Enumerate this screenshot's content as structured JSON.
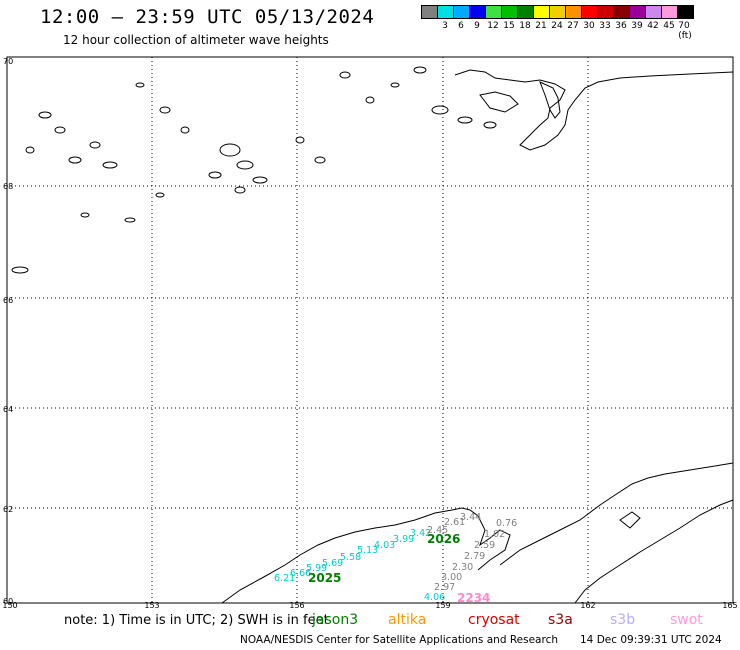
{
  "header": {
    "title": "12:00 – 23:59 UTC 05/13/2024",
    "subtitle": "12 hour collection of altimeter wave heights"
  },
  "legend": {
    "colors": [
      "#808080",
      "#00e0e0",
      "#00aaff",
      "#0000ee",
      "#40e040",
      "#00c000",
      "#008000",
      "#ffff00",
      "#f0d000",
      "#ff9000",
      "#ff0000",
      "#cc0000",
      "#880000",
      "#990099",
      "#cc88ee",
      "#ff99dd",
      "#000000"
    ],
    "labels": [
      "3",
      "6",
      "9",
      "12",
      "15",
      "18",
      "21",
      "24",
      "27",
      "30",
      "33",
      "36",
      "39",
      "42",
      "45",
      "70 (ft)"
    ]
  },
  "axes": {
    "lat_labels": [
      "70",
      "68",
      "66",
      "64",
      "62",
      "60"
    ],
    "lon_labels": [
      "150",
      "153",
      "156",
      "159",
      "162",
      "165"
    ]
  },
  "passes": [
    {
      "id": "2025",
      "color": "#008000",
      "values": [
        "6.21",
        "6.66",
        "5.99",
        "5.69",
        "5.58",
        "5.13",
        "4.03",
        "3.99",
        "3.42"
      ],
      "value_color": "#00cccc"
    },
    {
      "id": "2026",
      "color": "#008000",
      "values": [
        "2.45",
        "2.61"
      ],
      "value_color": "#808080"
    },
    {
      "id": "2234",
      "color": "#ff88cc",
      "values": [
        "3.44",
        "0.76",
        "1.02",
        "2.59",
        "2.79",
        "2.30",
        "3.00",
        "2.97",
        "4.06"
      ],
      "value_color": "#808080"
    }
  ],
  "note": "note:  1) Time is in UTC;  2) SWH is in feet",
  "satellites": [
    {
      "name": "jason3",
      "color": "#008000"
    },
    {
      "name": "altika",
      "color": "#ff9900"
    },
    {
      "name": "cryosat",
      "color": "#dd0000"
    },
    {
      "name": "s3a",
      "color": "#990000"
    },
    {
      "name": "s3b",
      "color": "#bbaaff"
    },
    {
      "name": "swot",
      "color": "#ff99dd"
    }
  ],
  "footer": {
    "source": "NOAA/NESDIS Center for Satellite Applications and Research",
    "timestamp": "14 Dec 09:39:31 UTC 2024"
  }
}
